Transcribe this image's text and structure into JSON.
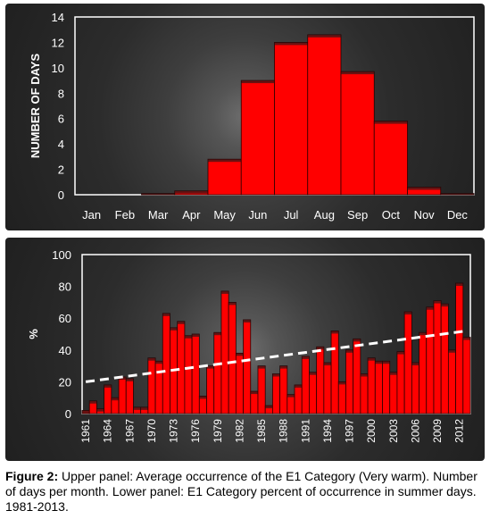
{
  "chart_data": [
    {
      "type": "bar",
      "categories": [
        "Jan",
        "Feb",
        "Mar",
        "Apr",
        "May",
        "Jun",
        "Jul",
        "Aug",
        "Sep",
        "Oct",
        "Nov",
        "Dec"
      ],
      "values": [
        0,
        0,
        0.1,
        0.3,
        2.8,
        9,
        12,
        12.6,
        9.7,
        5.8,
        0.6,
        0.1
      ],
      "ylabel": "NUMBER OF DAYS",
      "xlabel": "",
      "ylim": [
        0,
        14
      ],
      "yticks": [
        "0",
        "2",
        "4",
        "6",
        "8",
        "10",
        "12",
        "14"
      ],
      "color": "#ff0000",
      "grid": false
    },
    {
      "type": "bar",
      "years": [
        1961,
        1962,
        1963,
        1964,
        1965,
        1966,
        1967,
        1968,
        1969,
        1970,
        1971,
        1972,
        1973,
        1974,
        1975,
        1976,
        1977,
        1978,
        1979,
        1980,
        1981,
        1982,
        1983,
        1984,
        1985,
        1986,
        1987,
        1988,
        1989,
        1990,
        1991,
        1992,
        1993,
        1994,
        1995,
        1996,
        1997,
        1998,
        1999,
        2000,
        2001,
        2002,
        2003,
        2004,
        2005,
        2006,
        2007,
        2008,
        2009,
        2010,
        2011,
        2012,
        2013
      ],
      "values": [
        2,
        8,
        3,
        18,
        10,
        23,
        22,
        4,
        4,
        35,
        33,
        63,
        54,
        58,
        49,
        50,
        11,
        30,
        51,
        77,
        70,
        38,
        59,
        14,
        30,
        5,
        25,
        30,
        12,
        18,
        36,
        26,
        42,
        32,
        52,
        20,
        40,
        47,
        25,
        35,
        33,
        33,
        26,
        39,
        64,
        32,
        51,
        67,
        71,
        69,
        40,
        82,
        48
      ],
      "xtick_labels": [
        "1961",
        "1964",
        "1967",
        "1970",
        "1973",
        "1976",
        "1979",
        "1982",
        "1985",
        "1988",
        "1991",
        "1994",
        "1997",
        "2000",
        "2003",
        "2006",
        "2009",
        "2012"
      ],
      "ylabel": "%",
      "ylim": [
        0,
        100
      ],
      "yticks": [
        "0",
        "20",
        "40",
        "60",
        "80",
        "100"
      ],
      "trend": {
        "start": 20,
        "end": 52,
        "style": "dashed",
        "color": "#ffffff"
      },
      "color": "#ff0000",
      "grid": false
    }
  ],
  "caption": {
    "label": "Figure 2:",
    "text": " Upper panel: Average occurrence of the E1 Category (Very warm). Number of days per month. Lower panel: E1 Category percent of occurrence in summer days. 1981-2013."
  }
}
